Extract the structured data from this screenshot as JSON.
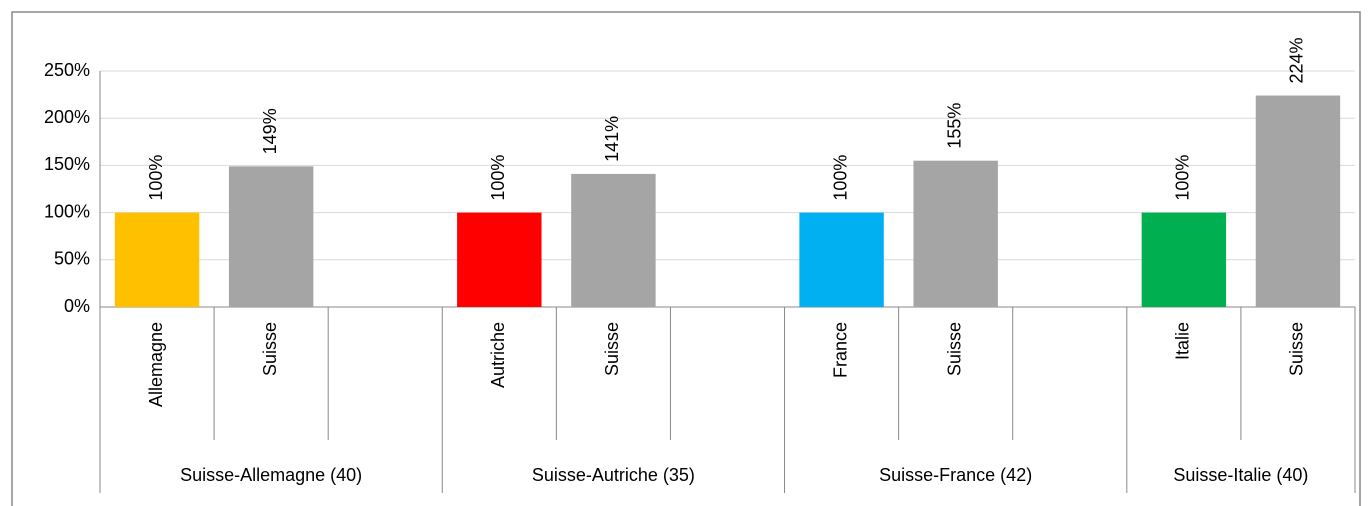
{
  "chart_data": {
    "type": "bar",
    "groups": [
      {
        "name": "Suisse-Allemagne (40)",
        "categories": [
          "Allemagne",
          "Suisse",
          null
        ],
        "values": [
          100,
          149,
          null
        ],
        "value_labels": [
          "100%",
          "149%",
          null
        ],
        "colors": [
          "#ffc000",
          "#a5a5a5",
          null
        ]
      },
      {
        "name": "Suisse-Autriche (35)",
        "categories": [
          "Autriche",
          "Suisse",
          null
        ],
        "values": [
          100,
          141,
          null
        ],
        "value_labels": [
          "100%",
          "141%",
          null
        ],
        "colors": [
          "#ff0000",
          "#a5a5a5",
          null
        ]
      },
      {
        "name": "Suisse-France (42)",
        "categories": [
          "France",
          "Suisse",
          null
        ],
        "values": [
          100,
          155,
          null
        ],
        "value_labels": [
          "100%",
          "155%",
          null
        ],
        "colors": [
          "#00b0f0",
          "#a5a5a5",
          null
        ]
      },
      {
        "name": "Suisse-Italie (40)",
        "categories": [
          "Italie",
          "Suisse"
        ],
        "values": [
          100,
          224
        ],
        "value_labels": [
          "100%",
          "224%"
        ],
        "colors": [
          "#00b050",
          "#a5a5a5"
        ]
      }
    ],
    "ylim": [
      0,
      250
    ],
    "yticks": [
      {
        "value": 0,
        "label": "0%"
      },
      {
        "value": 50,
        "label": "50%"
      },
      {
        "value": 100,
        "label": "100%"
      },
      {
        "value": 150,
        "label": "150%"
      },
      {
        "value": 200,
        "label": "200%"
      },
      {
        "value": 250,
        "label": "250%"
      }
    ],
    "grid": true
  }
}
